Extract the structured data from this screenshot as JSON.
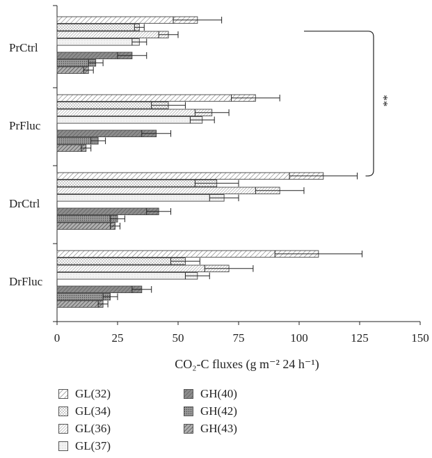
{
  "chart_data": {
    "type": "bar",
    "orientation": "horizontal",
    "title": "",
    "xlabel": "CO₂-C fluxes (g m⁻² 24 h⁻¹)",
    "ylabel": "",
    "xlim": [
      0,
      150
    ],
    "xticks": [
      0,
      25,
      50,
      75,
      100,
      125,
      150
    ],
    "grid": false,
    "legend_position": "bottom",
    "categories": [
      "PrCtrl",
      "PrFluc",
      "DrCtrl",
      "DrFluc"
    ],
    "series": [
      {
        "name": "GL(32)",
        "pattern": "diag-wide",
        "values": [
          58,
          82,
          110,
          108
        ],
        "errors": [
          10,
          10,
          14,
          18
        ]
      },
      {
        "name": "GL(34)",
        "pattern": "dots",
        "values": [
          34,
          46,
          66,
          53
        ],
        "errors": [
          2,
          7,
          9,
          6
        ]
      },
      {
        "name": "GL(36)",
        "pattern": "diag-dense",
        "values": [
          46,
          64,
          92,
          71
        ],
        "errors": [
          4,
          7,
          10,
          10
        ]
      },
      {
        "name": "GL(37)",
        "pattern": "light",
        "values": [
          34,
          60,
          69,
          58
        ],
        "errors": [
          3,
          5,
          6,
          5
        ]
      },
      {
        "name": "GH(40)",
        "pattern": "dark-diag",
        "values": [
          31,
          41,
          42,
          35
        ],
        "errors": [
          6,
          6,
          5,
          4
        ]
      },
      {
        "name": "GH(42)",
        "pattern": "dark-dots",
        "values": [
          16,
          17,
          25,
          22
        ],
        "errors": [
          3,
          3,
          3,
          3
        ]
      },
      {
        "name": "GH(43)",
        "pattern": "dark-hatch",
        "values": [
          13,
          12,
          24,
          19
        ],
        "errors": [
          2,
          2,
          2,
          2
        ]
      }
    ],
    "annotation": {
      "text": "**",
      "between": [
        "PrCtrl",
        "DrCtrl"
      ],
      "series": "GL(32)"
    }
  }
}
